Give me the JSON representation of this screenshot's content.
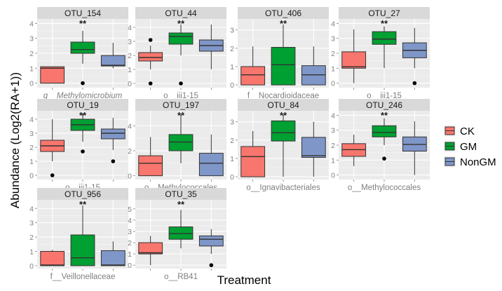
{
  "chart_data": {
    "type": "boxplot",
    "xlabel": "Treatment",
    "ylabel": "Abundance (Log2(RA+1))",
    "legend": {
      "position": "right",
      "entries": [
        {
          "name": "CK",
          "color": "#F8766D"
        },
        {
          "name": "GM",
          "color": "#00A032"
        },
        {
          "name": "NonGM",
          "color": "#7F96C8"
        }
      ]
    },
    "categories": [
      "CK",
      "GM",
      "NonGM"
    ],
    "panels": [
      {
        "title": "OTU_154",
        "taxon": "g__Methylomicrobium",
        "taxon_italic": true,
        "ylim": [
          -0.3,
          4.3
        ],
        "ticks": [
          0,
          1,
          2,
          3,
          4
        ],
        "significance": "**",
        "boxes": [
          {
            "group": "CK",
            "min": 0,
            "q1": 0,
            "median": 1.0,
            "q3": 1.1,
            "max": 1.1,
            "outliers": []
          },
          {
            "group": "GM",
            "min": 1.3,
            "q1": 2.0,
            "median": 2.25,
            "q3": 2.75,
            "max": 3.5,
            "outliers": [
              0
            ]
          },
          {
            "group": "NonGM",
            "min": 1.0,
            "q1": 1.15,
            "median": 1.2,
            "q3": 1.85,
            "max": 2.7,
            "outliers": []
          }
        ]
      },
      {
        "title": "OTU_44",
        "taxon": "o__iii1-15",
        "taxon_italic": false,
        "ylim": [
          -0.3,
          4.6
        ],
        "ticks": [
          0,
          1,
          2,
          3,
          4
        ],
        "significance": "**",
        "boxes": [
          {
            "group": "CK",
            "min": 1.0,
            "q1": 1.6,
            "median": 1.85,
            "q3": 2.2,
            "max": 2.7,
            "outliers": [
              0,
              3.1
            ]
          },
          {
            "group": "GM",
            "min": 2.0,
            "q1": 2.8,
            "median": 3.35,
            "q3": 3.6,
            "max": 4.2,
            "outliers": [
              0
            ]
          },
          {
            "group": "NonGM",
            "min": 1.0,
            "q1": 2.3,
            "median": 2.7,
            "q3": 3.1,
            "max": 4.2,
            "outliers": []
          }
        ]
      },
      {
        "title": "OTU_406",
        "taxon": "f__Nocardioidaceae",
        "taxon_italic": false,
        "ylim": [
          -0.15,
          3.6
        ],
        "ticks": [
          0,
          1,
          2,
          3
        ],
        "significance": "**",
        "boxes": [
          {
            "group": "CK",
            "min": 0,
            "q1": 0,
            "median": 0.55,
            "q3": 1.0,
            "max": 2.1,
            "outliers": []
          },
          {
            "group": "GM",
            "min": 0,
            "q1": 0,
            "median": 1.1,
            "q3": 2.05,
            "max": 3.3,
            "outliers": []
          },
          {
            "group": "NonGM",
            "min": 0,
            "q1": 0,
            "median": 0.55,
            "q3": 1.05,
            "max": 2.1,
            "outliers": []
          }
        ]
      },
      {
        "title": "OTU_27",
        "taxon": "o__iii1-15",
        "taxon_italic": false,
        "ylim": [
          -0.3,
          4.3
        ],
        "ticks": [
          0,
          1,
          2,
          3,
          4
        ],
        "significance": "**",
        "boxes": [
          {
            "group": "CK",
            "min": 0,
            "q1": 1.0,
            "median": 1.1,
            "q3": 2.1,
            "max": 3.6,
            "outliers": []
          },
          {
            "group": "GM",
            "min": 1.0,
            "q1": 2.6,
            "median": 2.95,
            "q3": 3.45,
            "max": 3.8,
            "outliers": []
          },
          {
            "group": "NonGM",
            "min": 1.0,
            "q1": 1.7,
            "median": 2.2,
            "q3": 2.7,
            "max": 3.7,
            "outliers": [
              0
            ]
          }
        ]
      },
      {
        "title": "OTU_19",
        "taxon": "o__iii1-15",
        "taxon_italic": false,
        "ylim": [
          -0.3,
          4.6
        ],
        "ticks": [
          0,
          1,
          2,
          3,
          4
        ],
        "significance": "**",
        "boxes": [
          {
            "group": "CK",
            "min": 1.0,
            "q1": 1.7,
            "median": 2.1,
            "q3": 2.5,
            "max": 4.0,
            "outliers": [
              0
            ]
          },
          {
            "group": "GM",
            "min": 2.4,
            "q1": 3.2,
            "median": 3.6,
            "q3": 4.0,
            "max": 4.4,
            "outliers": [
              1.7
            ]
          },
          {
            "group": "NonGM",
            "min": 1.8,
            "q1": 2.6,
            "median": 3.0,
            "q3": 3.3,
            "max": 4.1,
            "outliers": [
              1.0
            ]
          }
        ]
      },
      {
        "title": "OTU_197",
        "taxon": "o__Methylococcales",
        "taxon_italic": false,
        "ylim": [
          -0.3,
          5.2
        ],
        "ticks": [
          0,
          2,
          4
        ],
        "significance": "**",
        "boxes": [
          {
            "group": "CK",
            "min": 0,
            "q1": 0,
            "median": 1.0,
            "q3": 1.6,
            "max": 3.1,
            "outliers": []
          },
          {
            "group": "GM",
            "min": 1.0,
            "q1": 2.0,
            "median": 2.7,
            "q3": 3.3,
            "max": 4.9,
            "outliers": []
          },
          {
            "group": "NonGM",
            "min": 0,
            "q1": 0,
            "median": 1.0,
            "q3": 1.8,
            "max": 3.3,
            "outliers": []
          }
        ]
      },
      {
        "title": "OTU_84",
        "taxon": "o__Ignavibacteriales",
        "taxon_italic": false,
        "ylim": [
          -0.15,
          3.6
        ],
        "ticks": [
          0,
          1,
          2,
          3
        ],
        "significance": "**",
        "boxes": [
          {
            "group": "CK",
            "min": 0,
            "q1": 0,
            "median": 1.1,
            "q3": 1.65,
            "max": 2.5,
            "outliers": []
          },
          {
            "group": "GM",
            "min": 0,
            "q1": 1.95,
            "median": 2.4,
            "q3": 3.05,
            "max": 3.4,
            "outliers": []
          },
          {
            "group": "NonGM",
            "min": 0,
            "q1": 1.05,
            "median": 1.15,
            "q3": 2.15,
            "max": 3.0,
            "outliers": []
          }
        ]
      },
      {
        "title": "OTU_246",
        "taxon": "o__Methylococcales",
        "taxon_italic": false,
        "ylim": [
          -0.3,
          4.3
        ],
        "ticks": [
          0,
          1,
          2,
          3,
          4
        ],
        "significance": "**",
        "boxes": [
          {
            "group": "CK",
            "min": 0.6,
            "q1": 1.25,
            "median": 1.7,
            "q3": 2.1,
            "max": 2.7,
            "outliers": []
          },
          {
            "group": "GM",
            "min": 2.0,
            "q1": 2.55,
            "median": 2.85,
            "q3": 3.3,
            "max": 3.8,
            "outliers": [
              1.1
            ]
          },
          {
            "group": "NonGM",
            "min": 0,
            "q1": 1.6,
            "median": 2.05,
            "q3": 2.55,
            "max": 3.6,
            "outliers": []
          }
        ]
      },
      {
        "title": "OTU_956",
        "taxon": "f__Veillonellaceae",
        "taxon_italic": false,
        "ylim": [
          -0.2,
          4.6
        ],
        "ticks": [
          0,
          1,
          2,
          3,
          4
        ],
        "significance": "**",
        "boxes": [
          {
            "group": "CK",
            "min": 0,
            "q1": 0,
            "median": 0.05,
            "q3": 1.0,
            "max": 1.1,
            "outliers": []
          },
          {
            "group": "GM",
            "min": 0,
            "q1": 0,
            "median": 0.55,
            "q3": 2.15,
            "max": 4.2,
            "outliers": []
          },
          {
            "group": "NonGM",
            "min": 0,
            "q1": 0,
            "median": 0.05,
            "q3": 1.05,
            "max": 1.7,
            "outliers": []
          }
        ]
      },
      {
        "title": "OTU_35",
        "taxon": "o__RB41",
        "taxon_italic": false,
        "ylim": [
          -0.3,
          5.8
        ],
        "ticks": [
          0,
          1,
          2,
          3,
          4,
          5
        ],
        "significance": "**",
        "boxes": [
          {
            "group": "CK",
            "min": 0,
            "q1": 1.0,
            "median": 1.1,
            "q3": 2.0,
            "max": 2.6,
            "outliers": []
          },
          {
            "group": "GM",
            "min": 1.5,
            "q1": 2.3,
            "median": 2.8,
            "q3": 3.4,
            "max": 4.9,
            "outliers": []
          },
          {
            "group": "NonGM",
            "min": 1.0,
            "q1": 1.7,
            "median": 2.3,
            "q3": 2.6,
            "max": 3.2,
            "outliers": [
              0
            ]
          }
        ]
      }
    ]
  }
}
